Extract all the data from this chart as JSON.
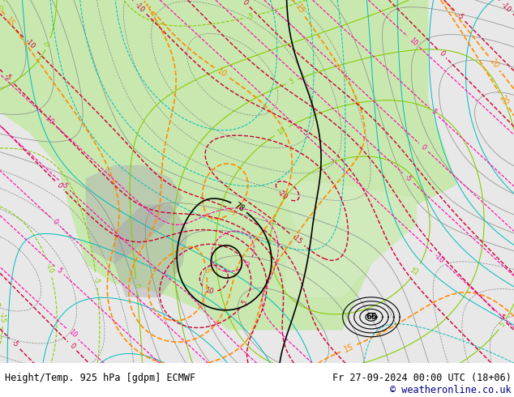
{
  "title_left": "Height/Temp. 925 hPa [gdpm] ECMWF",
  "title_right": "Fr 27-09-2024 00:00 UTC (18+06)",
  "copyright": "© weatheronline.co.uk",
  "bg_color": "#ffffff",
  "bottom_text_color": "#000080",
  "bottom_left_color": "#000000",
  "font_size_bottom": 8.5,
  "font_size_copyright": 8.5,
  "fig_width": 6.34,
  "fig_height": 4.9,
  "dpi": 100,
  "map_facecolor": "#f0f0f0",
  "land_green": "#b8e0b0",
  "land_gray": "#c8c8c8",
  "ocean_white": "#f8f8f8"
}
